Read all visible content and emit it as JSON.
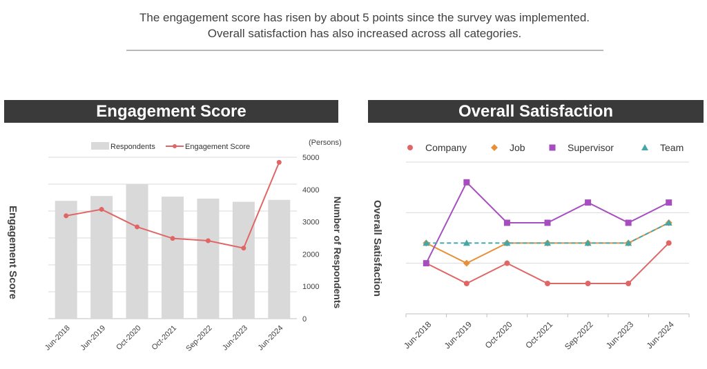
{
  "headline": {
    "line1": "The engagement score has risen by about 5 points since the survey was implemented.",
    "line2": "Overall satisfaction has also increased across all categories."
  },
  "colors": {
    "bar": "#d9d9d9",
    "engagement_line": "#e06666",
    "company": "#e06666",
    "job": "#e69138",
    "supervisor": "#a64dbf",
    "team": "#45a6a6",
    "grid": "#d9d9d9",
    "title_bg": "#3a3a3a"
  },
  "chart_data": [
    {
      "type": "bar",
      "title": "Engagement Score",
      "ylabel": "Engagement Score",
      "y2label": "Number of Respondents",
      "y2unit": "(Persons)",
      "categories": [
        "Jun-2018",
        "Jun-2019",
        "Oct-2020",
        "Oct-2021",
        "Sep-2022",
        "Jun-2023",
        "Jun-2024"
      ],
      "y2lim": [
        0,
        5000
      ],
      "y2ticks": [
        "0",
        "1000",
        "2000",
        "3000",
        "4000",
        "5000"
      ],
      "y_axis_labeled": false,
      "grid": true,
      "legend": "top",
      "series": [
        {
          "name": "Respondents",
          "kind": "bar",
          "axis": "right",
          "values": [
            3650,
            3800,
            4170,
            3780,
            3720,
            3620,
            3680
          ]
        },
        {
          "name": "Engagement Score",
          "kind": "line",
          "axis": "left",
          "values": [
            52.3,
            53.7,
            49.9,
            47.4,
            46.9,
            45.3,
            63.9
          ]
        }
      ]
    },
    {
      "type": "line",
      "title": "Overall Satisfaction",
      "ylabel": "Overall Satisfaction",
      "categories": [
        "Jun-2018",
        "Jun-2019",
        "Oct-2020",
        "Oct-2021",
        "Sep-2022",
        "Jun-2023",
        "Jun-2024"
      ],
      "y_axis_labeled": false,
      "grid": true,
      "legend": "top",
      "series": [
        {
          "name": "Company",
          "marker": "circle",
          "values": [
            1.0,
            0.6,
            1.0,
            0.6,
            0.6,
            0.6,
            1.4
          ]
        },
        {
          "name": "Job",
          "marker": "diamond",
          "values": [
            1.4,
            1.0,
            1.4,
            1.4,
            1.4,
            1.4,
            1.8
          ]
        },
        {
          "name": "Supervisor",
          "marker": "square",
          "values": [
            1.0,
            2.6,
            1.8,
            1.8,
            2.2,
            1.8,
            2.2
          ]
        },
        {
          "name": "Team",
          "marker": "triangle",
          "dashed": true,
          "values": [
            1.4,
            1.4,
            1.4,
            1.4,
            1.4,
            1.4,
            1.8
          ]
        }
      ]
    }
  ]
}
